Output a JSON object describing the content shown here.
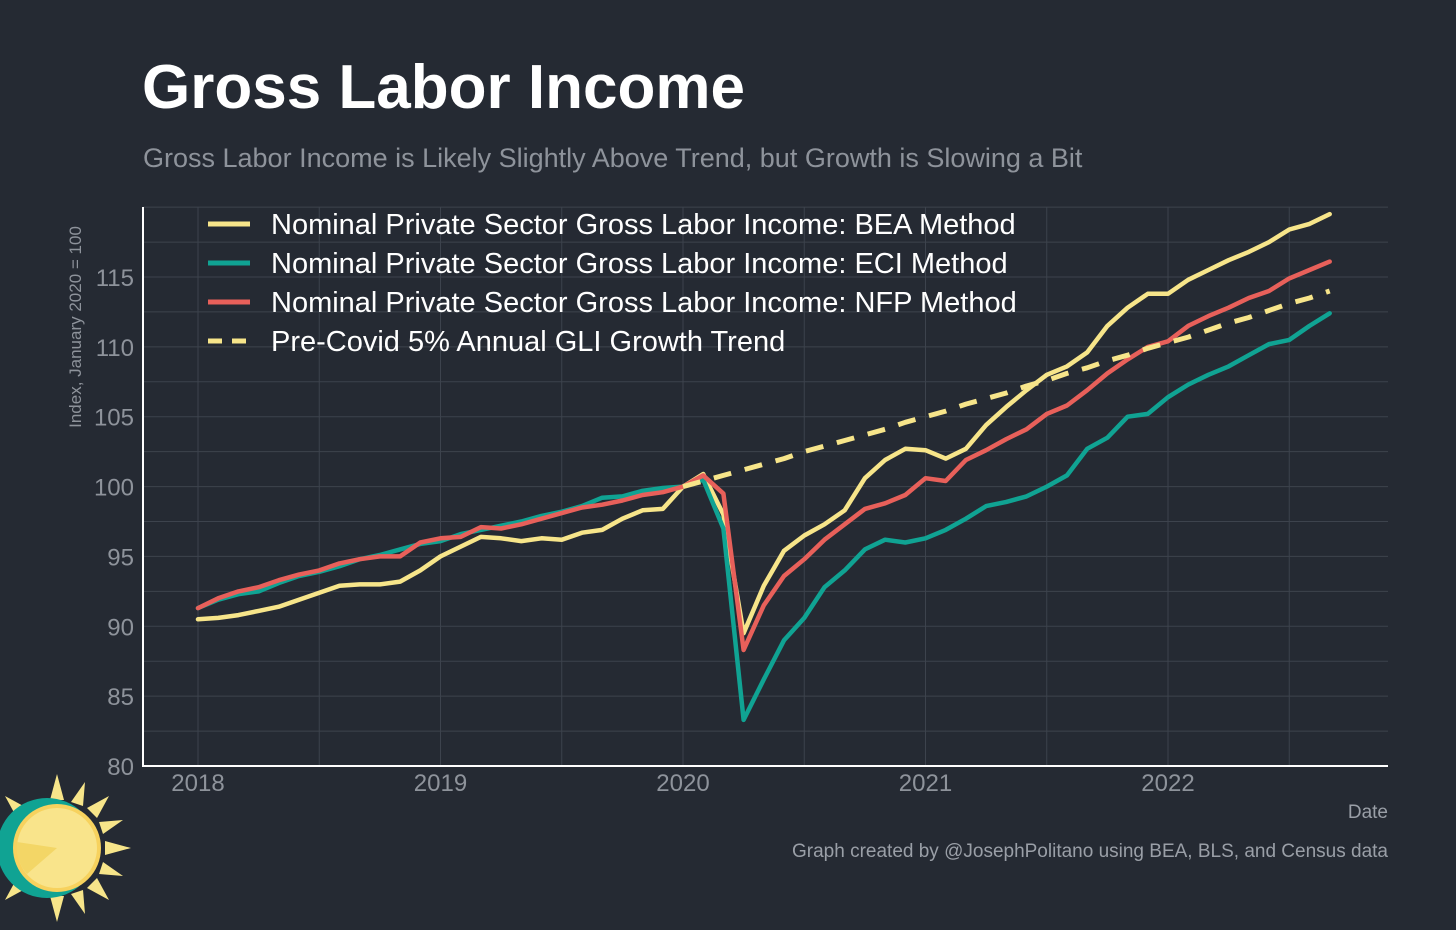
{
  "title": "Gross Labor Income",
  "subtitle": "Gross Labor Income is Likely Slightly Above Trend, but Growth is Slowing a Bit",
  "caption": "Graph created by @JosephPolitano using BEA, BLS, and Census data",
  "colors": {
    "background": "#252a33",
    "grid": "#3d434d",
    "axis": "#ffffff",
    "bea": "#f7e58a",
    "eci": "#10a393",
    "nfp": "#e8605a",
    "trend": "#f7e58a"
  },
  "chart_data": {
    "type": "line",
    "title": "Gross Labor Income",
    "xlabel": "Date",
    "ylabel": "Index, January 2020 = 100",
    "ylim": [
      80,
      120
    ],
    "yticks": [
      "80",
      "85",
      "90",
      "95",
      "100",
      "105",
      "110",
      "115"
    ],
    "xticks": [
      "2018",
      "2019",
      "2020",
      "2021",
      "2022"
    ],
    "grid": true,
    "legend_position": "top-left",
    "start": "2018-01",
    "series": [
      {
        "name": "Nominal Private Sector Gross Labor Income: BEA Method",
        "color": "#f7e58a",
        "dash": false,
        "values": [
          90.5,
          90.6,
          90.8,
          91.1,
          91.4,
          91.9,
          92.4,
          92.9,
          93.0,
          93.0,
          93.2,
          94.0,
          95.0,
          95.7,
          96.4,
          96.3,
          96.1,
          96.3,
          96.2,
          96.7,
          96.9,
          97.7,
          98.3,
          98.4,
          100.0,
          100.9,
          98.0,
          89.5,
          92.9,
          95.4,
          96.5,
          97.3,
          98.3,
          100.6,
          101.9,
          102.7,
          102.6,
          102.0,
          102.7,
          104.4,
          105.7,
          106.9,
          108.0,
          108.6,
          109.6,
          111.5,
          112.8,
          113.8,
          113.8,
          114.8,
          115.5,
          116.2,
          116.8,
          117.5,
          118.4,
          118.8,
          119.5
        ]
      },
      {
        "name": "Nominal Private Sector Gross Labor Income: ECI Method",
        "color": "#10a393",
        "dash": false,
        "values": [
          91.3,
          91.9,
          92.3,
          92.5,
          93.1,
          93.6,
          93.9,
          94.3,
          94.8,
          95.1,
          95.5,
          95.9,
          96.1,
          96.6,
          96.9,
          97.2,
          97.5,
          97.9,
          98.2,
          98.6,
          99.2,
          99.3,
          99.7,
          99.9,
          100.0,
          100.5,
          97.0,
          83.3,
          86.2,
          89.0,
          90.6,
          92.8,
          94.0,
          95.5,
          96.2,
          96.0,
          96.3,
          96.9,
          97.7,
          98.6,
          98.9,
          99.3,
          100.0,
          100.8,
          102.7,
          103.5,
          105.0,
          105.2,
          106.4,
          107.3,
          108.0,
          108.6,
          109.4,
          110.2,
          110.5,
          111.5,
          112.4
        ]
      },
      {
        "name": "Nominal Private Sector Gross Labor Income: NFP Method",
        "color": "#e8605a",
        "dash": false,
        "values": [
          91.3,
          92.0,
          92.5,
          92.8,
          93.3,
          93.7,
          94.0,
          94.5,
          94.8,
          95.0,
          95.0,
          96.0,
          96.3,
          96.4,
          97.1,
          97.0,
          97.3,
          97.7,
          98.1,
          98.5,
          98.7,
          99.0,
          99.4,
          99.6,
          100.0,
          100.8,
          99.5,
          88.3,
          91.5,
          93.6,
          94.8,
          96.2,
          97.3,
          98.4,
          98.8,
          99.4,
          100.6,
          100.4,
          101.9,
          102.6,
          103.4,
          104.1,
          105.2,
          105.8,
          106.9,
          108.1,
          109.1,
          110.0,
          110.4,
          111.5,
          112.2,
          112.8,
          113.5,
          114.0,
          114.9,
          115.5,
          116.1
        ]
      },
      {
        "name": "Pre-Covid 5% Annual GLI Growth Trend",
        "color": "#f7e58a",
        "dash": true,
        "x_start": "2020-01",
        "values": [
          100.0,
          100.4,
          100.8,
          101.2,
          101.6,
          102.0,
          102.5,
          102.9,
          103.3,
          103.7,
          104.1,
          104.6,
          105.0,
          105.4,
          105.9,
          106.3,
          106.7,
          107.2,
          107.6,
          108.1,
          108.5,
          109.0,
          109.4,
          109.9,
          110.3,
          110.7,
          111.2,
          111.7,
          112.1,
          112.6,
          113.1,
          113.5,
          114.0
        ]
      }
    ]
  }
}
